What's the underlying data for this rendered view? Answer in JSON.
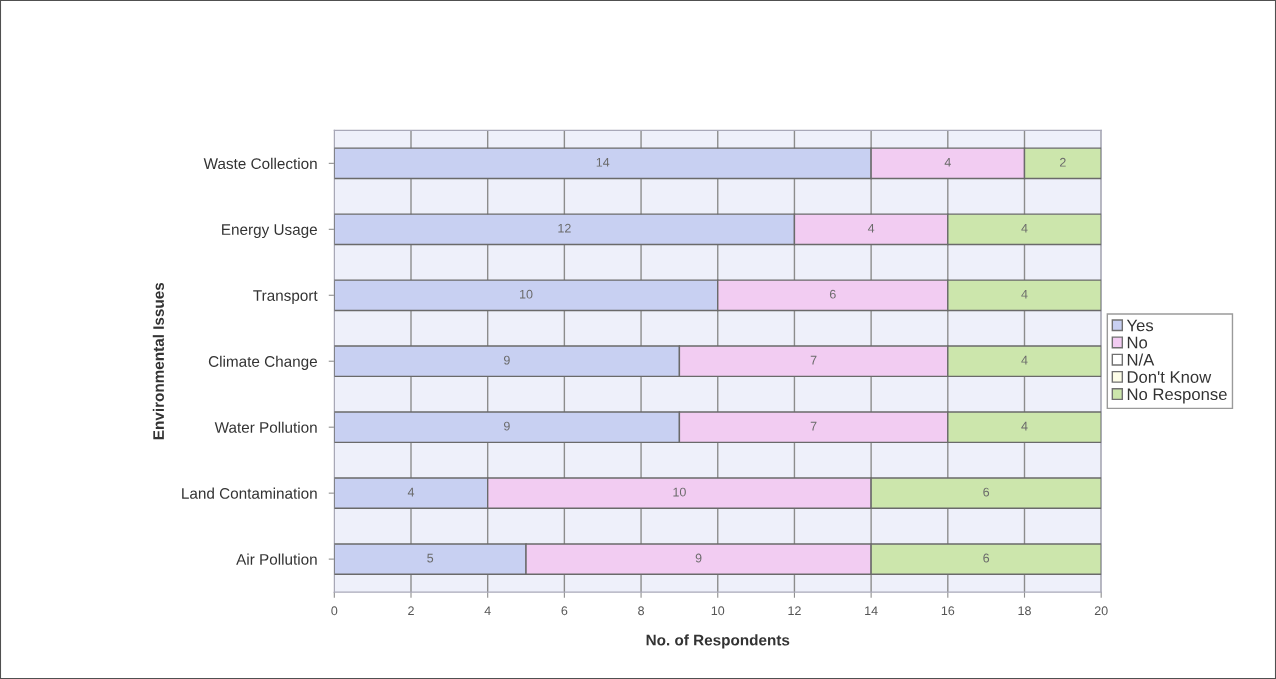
{
  "chart_data": {
    "type": "bar",
    "orientation": "horizontal",
    "stacked": true,
    "xlabel": "No. of Respondents",
    "ylabel": "Environmental Issues",
    "categories": [
      "Waste Collection",
      "Energy Usage",
      "Transport",
      "Climate Change",
      "Water Pollution",
      "Land Contamination",
      "Air Pollution"
    ],
    "series": [
      {
        "name": "Yes",
        "color": "#c8d0f2",
        "values": [
          14,
          12,
          10,
          9,
          9,
          4,
          5
        ],
        "value_labels": [
          "14",
          "12",
          "10",
          "9",
          "9",
          "4",
          "5"
        ]
      },
      {
        "name": "No",
        "color": "#f2ccf2",
        "values": [
          4,
          4,
          6,
          7,
          7,
          10,
          9
        ],
        "value_labels": [
          "4",
          "4",
          "6",
          "7",
          "7",
          "10",
          "9"
        ]
      },
      {
        "name": "N/A",
        "color": "#ffffff",
        "values": [
          0,
          0,
          0,
          0,
          0,
          0,
          0
        ]
      },
      {
        "name": "Don't Know",
        "color": "#fdfde8",
        "values": [
          0,
          0,
          0,
          0,
          0,
          0,
          0
        ]
      },
      {
        "name": "No Response",
        "color": "#cce6ac",
        "values": [
          2,
          4,
          4,
          4,
          4,
          6,
          6
        ],
        "value_labels": [
          "2",
          "4",
          "4",
          "4",
          "4",
          "6",
          "6"
        ]
      }
    ],
    "xlim": [
      0,
      20
    ],
    "xticks": [
      0,
      2,
      4,
      6,
      8,
      10,
      12,
      14,
      16,
      18,
      20
    ],
    "grid": "x",
    "legend": "right"
  }
}
